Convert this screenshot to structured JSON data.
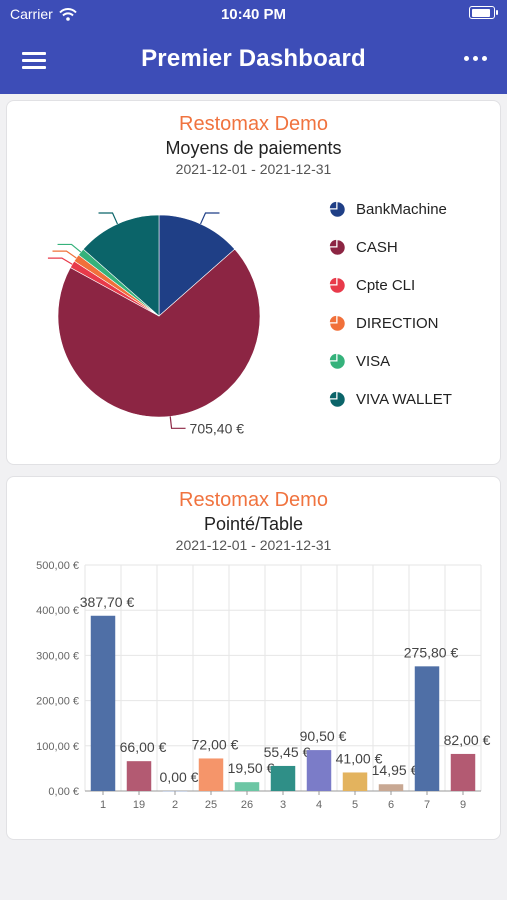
{
  "status_bar": {
    "carrier": "Carrier",
    "time": "10:40 PM",
    "battery_level": 0.92
  },
  "header": {
    "title": "Premier Dashboard",
    "menu_icon": "hamburger-icon",
    "more_icon": "more-horizontal-icon",
    "background": "#3d4db7"
  },
  "pie_card": {
    "company": "Restomax Demo",
    "subtitle": "Moyens de paiements",
    "date_range": "2021-12-01 - 2021-12-31",
    "chart_data": {
      "type": "pie",
      "slices": [
        {
          "name": "BankMachine",
          "value": 137,
          "color": "#1f3f86",
          "label": ""
        },
        {
          "name": "CASH",
          "value": 705.4,
          "color": "#8c2543",
          "label": "705,40 €"
        },
        {
          "name": "Cpte CLI",
          "value": 12,
          "color": "#e83a4a",
          "label": ""
        },
        {
          "name": "DIRECTION",
          "value": 12,
          "color": "#f1703a",
          "label": ""
        },
        {
          "name": "VISA",
          "value": 12,
          "color": "#35b27b",
          "label": ""
        },
        {
          "name": "VIVA WALLET",
          "value": 137,
          "color": "#0b6469",
          "label": ""
        }
      ],
      "legend_position": "right"
    }
  },
  "bar_card": {
    "company": "Restomax Demo",
    "subtitle": "Pointé/Table",
    "date_range": "2021-12-01 - 2021-12-31",
    "chart_data": {
      "type": "bar",
      "categories": [
        "1",
        "19",
        "2",
        "25",
        "26",
        "3",
        "4",
        "5",
        "6",
        "7",
        "9"
      ],
      "values": [
        387.7,
        66.0,
        0.0,
        72.0,
        19.5,
        55.45,
        90.5,
        41.0,
        14.95,
        275.8,
        82.0
      ],
      "value_labels": [
        "387,70 €",
        "66,00 €",
        "0,00 €",
        "72,00 €",
        "19,50 €",
        "55,45 €",
        "90,50 €",
        "41,00 €",
        "14,95 €",
        "275,80 €",
        "82,00 €"
      ],
      "colors": [
        "#4f6fa6",
        "#b35a72",
        "#9aaed1",
        "#f5956a",
        "#6cc6a4",
        "#2f8f87",
        "#7b7cc8",
        "#e3b35e",
        "#c8a893",
        "#4f6fa6",
        "#b35a72"
      ],
      "y_ticks": [
        "0,00 €",
        "100,00 €",
        "200,00 €",
        "300,00 €",
        "400,00 €",
        "500,00 €"
      ],
      "ylim": [
        0,
        500
      ],
      "grid": true
    }
  }
}
